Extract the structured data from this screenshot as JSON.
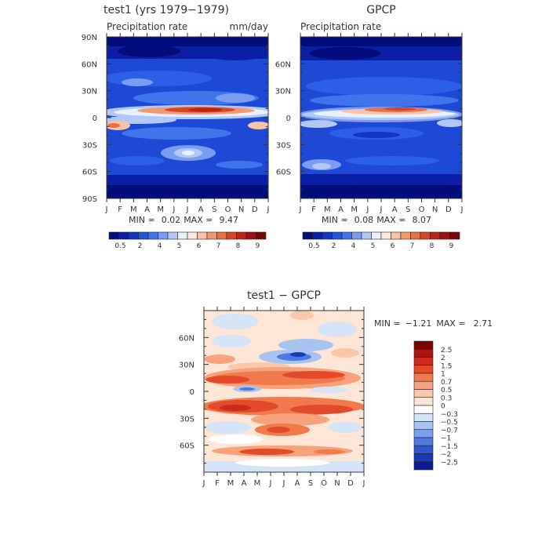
{
  "chart_data": [
    {
      "type": "heatmap",
      "title": "test1 (yrs 1979−1979)",
      "subtitle_left": "Precipitation rate",
      "units": "mm/day",
      "y_ticks": [
        "90N",
        "60N",
        "30N",
        "0",
        "30S",
        "60S",
        "90S"
      ],
      "x_ticks": [
        "J",
        "F",
        "M",
        "A",
        "M",
        "J",
        "J",
        "A",
        "S",
        "O",
        "N",
        "D",
        "J"
      ],
      "stats": {
        "min_label": "MIN =",
        "min": "0.02",
        "max_label": "MAX =",
        "max": "9.47"
      },
      "colorbar": {
        "colors": [
          "#000d7a",
          "#0b1ea6",
          "#1434c6",
          "#2453dc",
          "#3f74ec",
          "#7a9cf2",
          "#b3c8f6",
          "#e8f0fb",
          "#fde8dc",
          "#f8c3a6",
          "#f19a72",
          "#e96f46",
          "#d9452a",
          "#bf2318",
          "#a0100f",
          "#7a0505"
        ],
        "labels": [
          "0.5",
          "2",
          "4",
          "5",
          "6",
          "7",
          "8",
          "9"
        ]
      }
    },
    {
      "type": "heatmap",
      "title": "GPCP",
      "subtitle_left": "Precipitation rate",
      "y_ticks": [
        "60N",
        "30N",
        "0",
        "30S",
        "60S"
      ],
      "x_ticks": [
        "J",
        "F",
        "M",
        "A",
        "M",
        "J",
        "J",
        "A",
        "S",
        "O",
        "N",
        "D",
        "J"
      ],
      "stats": {
        "min_label": "MIN =",
        "min": "0.08",
        "max_label": "MAX =",
        "max": "8.07"
      },
      "colorbar": {
        "colors": [
          "#000d7a",
          "#0b1ea6",
          "#1434c6",
          "#2453dc",
          "#3f74ec",
          "#7a9cf2",
          "#b3c8f6",
          "#e8f0fb",
          "#fde8dc",
          "#f8c3a6",
          "#f19a72",
          "#e96f46",
          "#d9452a",
          "#bf2318",
          "#a0100f",
          "#7a0505"
        ],
        "labels": [
          "0.5",
          "2",
          "4",
          "5",
          "6",
          "7",
          "8",
          "9"
        ]
      }
    },
    {
      "type": "heatmap",
      "title": "test1  −  GPCP",
      "y_ticks": [
        "60N",
        "30N",
        "0",
        "30S",
        "60S"
      ],
      "x_ticks": [
        "J",
        "F",
        "M",
        "A",
        "M",
        "J",
        "J",
        "A",
        "S",
        "O",
        "N",
        "D",
        "J"
      ],
      "stats": {
        "min_label": "MIN =",
        "min": "−1.21",
        "max_label": "MAX =",
        "max": "2.71"
      },
      "colorbar": {
        "colors": [
          "#7a0505",
          "#a8140f",
          "#cc2a1c",
          "#e34a2a",
          "#f07a4c",
          "#f6a27c",
          "#fbc7ab",
          "#fde6d6",
          "#ffffff",
          "#d6e4f8",
          "#a9c3f0",
          "#7da0ea",
          "#4e78e2",
          "#2d55d6",
          "#1a38b8",
          "#0b1c8e"
        ],
        "labels": [
          "2.5",
          "2",
          "1.5",
          "1",
          "0.7",
          "0.5",
          "0.3",
          "0",
          "−0.3",
          "−0.5",
          "−0.7",
          "−1",
          "−1.5",
          "−2",
          "−2.5"
        ]
      }
    }
  ]
}
